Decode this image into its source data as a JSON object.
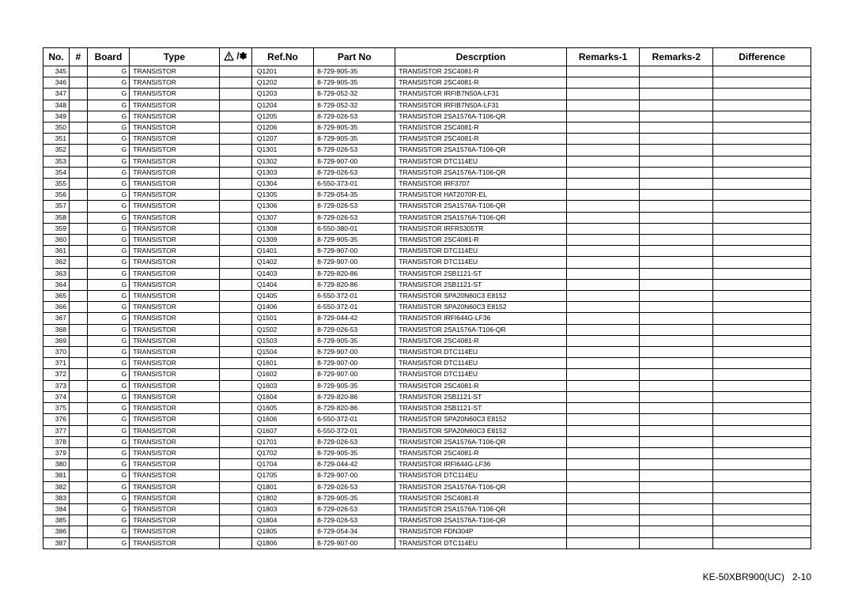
{
  "footer": {
    "model": "KE-50XBR900(UC)",
    "page": "2-10"
  },
  "table": {
    "headers": {
      "no": "No.",
      "hash": "#",
      "board": "Board",
      "type": "Type",
      "warn": "△! /*",
      "ref": "Ref.No",
      "part": "Part No",
      "desc": "Descrption",
      "remarks1": "Remarks-1",
      "remarks2": "Remarks-2",
      "difference": "Difference"
    },
    "columns": [
      "no",
      "hash",
      "board",
      "type",
      "warn",
      "ref",
      "part",
      "desc",
      "remarks1",
      "remarks2",
      "difference"
    ],
    "rows": [
      {
        "no": "345",
        "board": "G",
        "type": "TRANSISTOR",
        "ref": "Q1201",
        "part": "8-729-905-35",
        "desc": "TRANSISTOR 2SC4081-R"
      },
      {
        "no": "346",
        "board": "G",
        "type": "TRANSISTOR",
        "ref": "Q1202",
        "part": "8-729-905-35",
        "desc": "TRANSISTOR 2SC4081-R"
      },
      {
        "no": "347",
        "board": "G",
        "type": "TRANSISTOR",
        "ref": "Q1203",
        "part": "8-729-052-32",
        "desc": "TRANSISTOR IRFIB7N50A-LF31"
      },
      {
        "no": "348",
        "board": "G",
        "type": "TRANSISTOR",
        "ref": "Q1204",
        "part": "8-729-052-32",
        "desc": "TRANSISTOR IRFIB7N50A-LF31"
      },
      {
        "no": "349",
        "board": "G",
        "type": "TRANSISTOR",
        "ref": "Q1205",
        "part": "8-729-026-53",
        "desc": "TRANSISTOR 2SA1576A-T106-QR"
      },
      {
        "no": "350",
        "board": "G",
        "type": "TRANSISTOR",
        "ref": "Q1206",
        "part": "8-729-905-35",
        "desc": "TRANSISTOR 2SC4081-R"
      },
      {
        "no": "351",
        "board": "G",
        "type": "TRANSISTOR",
        "ref": "Q1207",
        "part": "8-729-905-35",
        "desc": "TRANSISTOR 2SC4081-R"
      },
      {
        "no": "352",
        "board": "G",
        "type": "TRANSISTOR",
        "ref": "Q1301",
        "part": "8-729-026-53",
        "desc": "TRANSISTOR 2SA1576A-T106-QR"
      },
      {
        "no": "353",
        "board": "G",
        "type": "TRANSISTOR",
        "ref": "Q1302",
        "part": "8-729-907-00",
        "desc": "TRANSISTOR DTC114EU"
      },
      {
        "no": "354",
        "board": "G",
        "type": "TRANSISTOR",
        "ref": "Q1303",
        "part": "8-729-026-53",
        "desc": "TRANSISTOR 2SA1576A-T106-QR"
      },
      {
        "no": "355",
        "board": "G",
        "type": "TRANSISTOR",
        "ref": "Q1304",
        "part": "6-550-373-01",
        "desc": "TRANSISTOR IRF3707"
      },
      {
        "no": "356",
        "board": "G",
        "type": "TRANSISTOR",
        "ref": "Q1305",
        "part": "8-729-054-35",
        "desc": "TRANSISTOR HAT2070R-EL"
      },
      {
        "no": "357",
        "board": "G",
        "type": "TRANSISTOR",
        "ref": "Q1306",
        "part": "8-729-026-53",
        "desc": "TRANSISTOR 2SA1576A-T106-QR"
      },
      {
        "no": "358",
        "board": "G",
        "type": "TRANSISTOR",
        "ref": "Q1307",
        "part": "8-729-026-53",
        "desc": "TRANSISTOR 2SA1576A-T106-QR"
      },
      {
        "no": "359",
        "board": "G",
        "type": "TRANSISTOR",
        "ref": "Q1308",
        "part": "6-550-380-01",
        "desc": "TRANSISTOR IRFR5305TR"
      },
      {
        "no": "360",
        "board": "G",
        "type": "TRANSISTOR",
        "ref": "Q1309",
        "part": "8-729-905-35",
        "desc": "TRANSISTOR 2SC4081-R"
      },
      {
        "no": "361",
        "board": "G",
        "type": "TRANSISTOR",
        "ref": "Q1401",
        "part": "8-729-907-00",
        "desc": "TRANSISTOR DTC114EU"
      },
      {
        "no": "362",
        "board": "G",
        "type": "TRANSISTOR",
        "ref": "Q1402",
        "part": "8-729-907-00",
        "desc": "TRANSISTOR DTC114EU"
      },
      {
        "no": "363",
        "board": "G",
        "type": "TRANSISTOR",
        "ref": "Q1403",
        "part": "8-729-820-86",
        "desc": "TRANSISTOR 2SB1121-ST"
      },
      {
        "no": "364",
        "board": "G",
        "type": "TRANSISTOR",
        "ref": "Q1404",
        "part": "8-729-820-86",
        "desc": "TRANSISTOR 2SB1121-ST"
      },
      {
        "no": "365",
        "board": "G",
        "type": "TRANSISTOR",
        "ref": "Q1405",
        "part": "6-550-372-01",
        "desc": "TRANSISTOR SPA20N60C3 E8152"
      },
      {
        "no": "366",
        "board": "G",
        "type": "TRANSISTOR",
        "ref": "Q1406",
        "part": "6-550-372-01",
        "desc": "TRANSISTOR SPA20N60C3 E8152"
      },
      {
        "no": "367",
        "board": "G",
        "type": "TRANSISTOR",
        "ref": "Q1501",
        "part": "8-729-044-42",
        "desc": "TRANSISTOR IRFI644G-LF36"
      },
      {
        "no": "368",
        "board": "G",
        "type": "TRANSISTOR",
        "ref": "Q1502",
        "part": "8-729-026-53",
        "desc": "TRANSISTOR 2SA1576A-T106-QR"
      },
      {
        "no": "369",
        "board": "G",
        "type": "TRANSISTOR",
        "ref": "Q1503",
        "part": "8-729-905-35",
        "desc": "TRANSISTOR 2SC4081-R"
      },
      {
        "no": "370",
        "board": "G",
        "type": "TRANSISTOR",
        "ref": "Q1504",
        "part": "8-729-907-00",
        "desc": "TRANSISTOR DTC114EU"
      },
      {
        "no": "371",
        "board": "G",
        "type": "TRANSISTOR",
        "ref": "Q1601",
        "part": "8-729-907-00",
        "desc": "TRANSISTOR DTC114EU"
      },
      {
        "no": "372",
        "board": "G",
        "type": "TRANSISTOR",
        "ref": "Q1602",
        "part": "8-729-907-00",
        "desc": "TRANSISTOR DTC114EU"
      },
      {
        "no": "373",
        "board": "G",
        "type": "TRANSISTOR",
        "ref": "Q1603",
        "part": "8-729-905-35",
        "desc": "TRANSISTOR 2SC4081-R"
      },
      {
        "no": "374",
        "board": "G",
        "type": "TRANSISTOR",
        "ref": "Q1604",
        "part": "8-729-820-86",
        "desc": "TRANSISTOR 2SB1121-ST"
      },
      {
        "no": "375",
        "board": "G",
        "type": "TRANSISTOR",
        "ref": "Q1605",
        "part": "8-729-820-86",
        "desc": "TRANSISTOR 2SB1121-ST"
      },
      {
        "no": "376",
        "board": "G",
        "type": "TRANSISTOR",
        "ref": "Q1606",
        "part": "6-550-372-01",
        "desc": "TRANSISTOR SPA20N60C3 E8152"
      },
      {
        "no": "377",
        "board": "G",
        "type": "TRANSISTOR",
        "ref": "Q1607",
        "part": "6-550-372-01",
        "desc": "TRANSISTOR SPA20N60C3 E8152"
      },
      {
        "no": "378",
        "board": "G",
        "type": "TRANSISTOR",
        "ref": "Q1701",
        "part": "8-729-026-53",
        "desc": "TRANSISTOR 2SA1576A-T106-QR"
      },
      {
        "no": "379",
        "board": "G",
        "type": "TRANSISTOR",
        "ref": "Q1702",
        "part": "8-729-905-35",
        "desc": "TRANSISTOR 2SC4081-R"
      },
      {
        "no": "380",
        "board": "G",
        "type": "TRANSISTOR",
        "ref": "Q1704",
        "part": "8-729-044-42",
        "desc": "TRANSISTOR IRFI644G-LF36"
      },
      {
        "no": "381",
        "board": "G",
        "type": "TRANSISTOR",
        "ref": "Q1705",
        "part": "8-729-907-00",
        "desc": "TRANSISTOR DTC114EU"
      },
      {
        "no": "382",
        "board": "G",
        "type": "TRANSISTOR",
        "ref": "Q1801",
        "part": "8-729-026-53",
        "desc": "TRANSISTOR 2SA1576A-T106-QR"
      },
      {
        "no": "383",
        "board": "G",
        "type": "TRANSISTOR",
        "ref": "Q1802",
        "part": "8-729-905-35",
        "desc": "TRANSISTOR 2SC4081-R"
      },
      {
        "no": "384",
        "board": "G",
        "type": "TRANSISTOR",
        "ref": "Q1803",
        "part": "8-729-026-53",
        "desc": "TRANSISTOR 2SA1576A-T106-QR"
      },
      {
        "no": "385",
        "board": "G",
        "type": "TRANSISTOR",
        "ref": "Q1804",
        "part": "8-729-026-53",
        "desc": "TRANSISTOR 2SA1576A-T106-QR"
      },
      {
        "no": "386",
        "board": "G",
        "type": "TRANSISTOR",
        "ref": "Q1805",
        "part": "8-729-054-34",
        "desc": "TRANSISTOR FDN304P"
      },
      {
        "no": "387",
        "board": "G",
        "type": "TRANSISTOR",
        "ref": "Q1806",
        "part": "8-729-907-00",
        "desc": "TRANSISTOR DTC114EU"
      }
    ]
  }
}
